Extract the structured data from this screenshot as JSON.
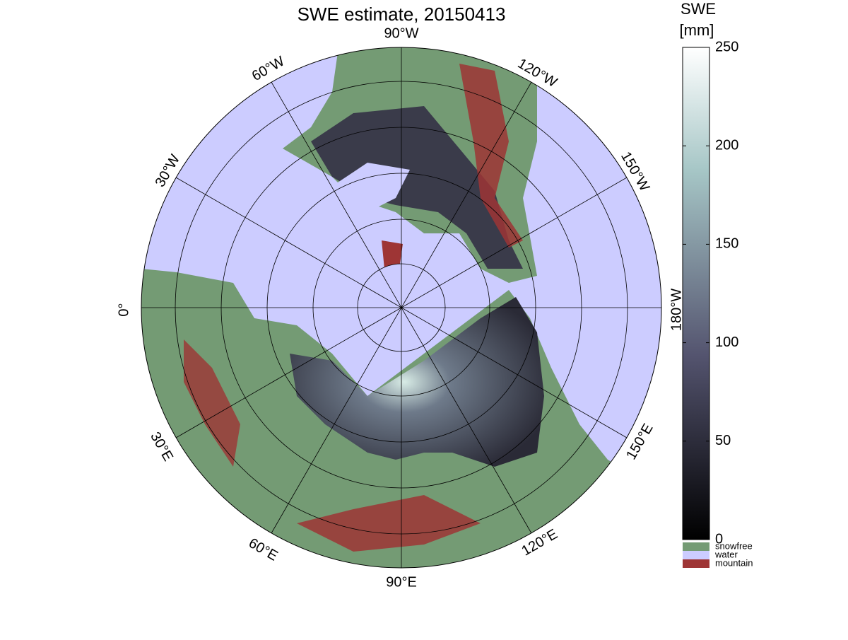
{
  "header": {
    "title": "SWE estimate, 20150413"
  },
  "colorbar": {
    "label": [
      "SWE",
      "[mm]"
    ],
    "lim": [
      0,
      250
    ],
    "ticks": [
      0,
      50,
      100,
      150,
      200,
      250
    ]
  },
  "legend": {
    "items": [
      {
        "name": "snowfree",
        "color": "#749b74"
      },
      {
        "name": "water",
        "color": "#ccccff"
      },
      {
        "name": "mountain",
        "color": "#9e3535"
      }
    ]
  },
  "map": {
    "longitude_labels": [
      "90°W",
      "120°W",
      "150°W",
      "180°W",
      "150°E",
      "120°E",
      "90°E",
      "60°E",
      "30°E",
      "0°",
      "30°W",
      "60°W"
    ]
  }
}
